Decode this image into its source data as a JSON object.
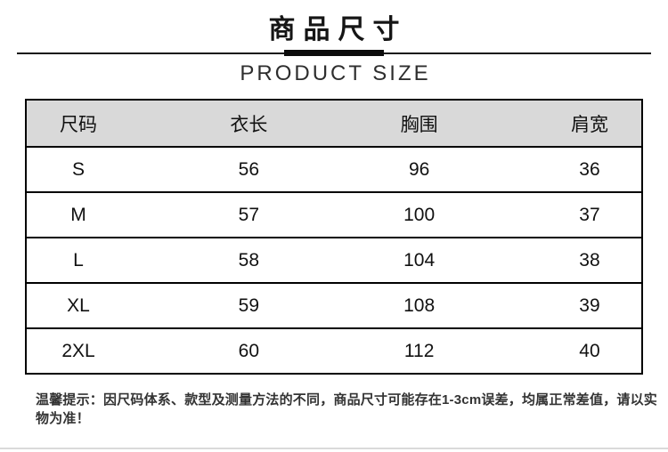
{
  "page": {
    "title_cn": "商品尺寸",
    "title_en": "PRODUCT SIZE"
  },
  "size_table": {
    "columns": [
      "尺码",
      "衣长",
      "胸围",
      "肩宽"
    ],
    "rows": [
      [
        "S",
        "56",
        "96",
        "36"
      ],
      [
        "M",
        "57",
        "100",
        "37"
      ],
      [
        "L",
        "58",
        "104",
        "38"
      ],
      [
        "XL",
        "59",
        "108",
        "39"
      ],
      [
        "2XL",
        "60",
        "112",
        "40"
      ]
    ]
  },
  "note": "温馨提示：因尺码体系、款型及测量方法的不同，商品尺寸可能存在1-3cm误差，均属正常差值，请以实物为准！",
  "colors": {
    "header_bg": "#d9d9d9",
    "table_border": "#000000",
    "text": "#1a1a1a",
    "divider": "#161616",
    "bottom_divider": "#dadada"
  }
}
